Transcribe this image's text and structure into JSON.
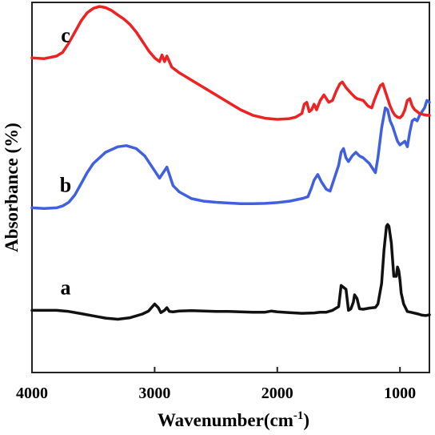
{
  "chart_data": {
    "type": "line",
    "title": "",
    "xlabel": "Wavenumber(cm",
    "xlabel_sup": "-1",
    "xlabel_close": ")",
    "ylabel": "Absorbance (%)",
    "xlim": [
      4000,
      760
    ],
    "ylim": [
      0,
      100
    ],
    "x_reversed": true,
    "x_ticks": [
      {
        "value": 4000,
        "label": "4000"
      },
      {
        "value": 3000,
        "label": "3000"
      },
      {
        "value": 2000,
        "label": "2000"
      },
      {
        "value": 1000,
        "label": "1000"
      }
    ],
    "y_ticks_shown": false,
    "grid": false,
    "legend": "none",
    "series": [
      {
        "name": "a",
        "color": "#111111",
        "points": [
          [
            4000,
            16.8
          ],
          [
            3800,
            16.8
          ],
          [
            3700,
            16.5
          ],
          [
            3600,
            15.9
          ],
          [
            3500,
            15.3
          ],
          [
            3400,
            14.7
          ],
          [
            3300,
            14.4
          ],
          [
            3200,
            14.8
          ],
          [
            3100,
            15.8
          ],
          [
            3050,
            16.6
          ],
          [
            3000,
            18.5
          ],
          [
            2970,
            17.5
          ],
          [
            2950,
            16.2
          ],
          [
            2920,
            16.8
          ],
          [
            2900,
            17.5
          ],
          [
            2880,
            16.5
          ],
          [
            2850,
            16.4
          ],
          [
            2800,
            16.6
          ],
          [
            2700,
            16.7
          ],
          [
            2600,
            16.6
          ],
          [
            2500,
            16.5
          ],
          [
            2400,
            16.5
          ],
          [
            2300,
            16.4
          ],
          [
            2200,
            16.3
          ],
          [
            2100,
            16.3
          ],
          [
            2050,
            16.6
          ],
          [
            2000,
            16.4
          ],
          [
            1900,
            16.2
          ],
          [
            1800,
            16.0
          ],
          [
            1700,
            16.1
          ],
          [
            1650,
            16.3
          ],
          [
            1600,
            16.3
          ],
          [
            1550,
            16.8
          ],
          [
            1500,
            17.8
          ],
          [
            1480,
            23.5
          ],
          [
            1460,
            23.0
          ],
          [
            1440,
            22.5
          ],
          [
            1420,
            16.8
          ],
          [
            1400,
            17.2
          ],
          [
            1380,
            19.0
          ],
          [
            1370,
            21.0
          ],
          [
            1350,
            20.0
          ],
          [
            1330,
            17.2
          ],
          [
            1300,
            17.1
          ],
          [
            1250,
            17.4
          ],
          [
            1200,
            17.6
          ],
          [
            1180,
            18.5
          ],
          [
            1150,
            24.0
          ],
          [
            1130,
            33.0
          ],
          [
            1110,
            39.5
          ],
          [
            1100,
            40.0
          ],
          [
            1090,
            39.5
          ],
          [
            1070,
            35.0
          ],
          [
            1050,
            26.0
          ],
          [
            1030,
            26.0
          ],
          [
            1020,
            28.5
          ],
          [
            1010,
            27.5
          ],
          [
            1000,
            25.0
          ],
          [
            990,
            21.5
          ],
          [
            970,
            18.5
          ],
          [
            940,
            16.5
          ],
          [
            900,
            16.2
          ],
          [
            850,
            15.8
          ],
          [
            820,
            15.5
          ],
          [
            790,
            15.4
          ],
          [
            760,
            15.6
          ]
        ]
      },
      {
        "name": "b",
        "color": "#4060e0",
        "points": [
          [
            4000,
            44.5
          ],
          [
            3900,
            44.3
          ],
          [
            3800,
            44.5
          ],
          [
            3750,
            45.0
          ],
          [
            3700,
            46.0
          ],
          [
            3650,
            48.0
          ],
          [
            3600,
            51.0
          ],
          [
            3550,
            54.0
          ],
          [
            3500,
            56.5
          ],
          [
            3400,
            59.5
          ],
          [
            3300,
            61.0
          ],
          [
            3230,
            61.3
          ],
          [
            3150,
            60.5
          ],
          [
            3080,
            58.5
          ],
          [
            3000,
            54.5
          ],
          [
            2960,
            52.5
          ],
          [
            2930,
            54.0
          ],
          [
            2900,
            55.5
          ],
          [
            2880,
            53.5
          ],
          [
            2850,
            50.5
          ],
          [
            2800,
            48.8
          ],
          [
            2700,
            47.0
          ],
          [
            2600,
            46.3
          ],
          [
            2500,
            46.0
          ],
          [
            2400,
            45.8
          ],
          [
            2300,
            45.6
          ],
          [
            2200,
            45.6
          ],
          [
            2100,
            45.7
          ],
          [
            2000,
            45.9
          ],
          [
            1900,
            46.3
          ],
          [
            1800,
            47.0
          ],
          [
            1750,
            47.5
          ],
          [
            1720,
            50.0
          ],
          [
            1700,
            52.0
          ],
          [
            1670,
            53.5
          ],
          [
            1640,
            51.5
          ],
          [
            1600,
            49.5
          ],
          [
            1570,
            49.0
          ],
          [
            1540,
            52.0
          ],
          [
            1500,
            56.0
          ],
          [
            1480,
            59.5
          ],
          [
            1460,
            60.5
          ],
          [
            1440,
            58.0
          ],
          [
            1420,
            57.0
          ],
          [
            1390,
            58.5
          ],
          [
            1360,
            59.5
          ],
          [
            1330,
            58.5
          ],
          [
            1300,
            58.0
          ],
          [
            1250,
            56.5
          ],
          [
            1200,
            54.0
          ],
          [
            1180,
            58.0
          ],
          [
            1150,
            66.0
          ],
          [
            1120,
            71.5
          ],
          [
            1100,
            71.0
          ],
          [
            1080,
            68.0
          ],
          [
            1060,
            66.5
          ],
          [
            1040,
            64.5
          ],
          [
            1020,
            62.5
          ],
          [
            1000,
            61.5
          ],
          [
            980,
            62.0
          ],
          [
            960,
            62.5
          ],
          [
            940,
            61.0
          ],
          [
            920,
            65.0
          ],
          [
            900,
            68.0
          ],
          [
            880,
            68.5
          ],
          [
            860,
            68.0
          ],
          [
            840,
            69.5
          ],
          [
            820,
            70.5
          ],
          [
            800,
            71.5
          ],
          [
            780,
            73.5
          ],
          [
            760,
            73.0
          ]
        ]
      },
      {
        "name": "c",
        "color": "#ee2222",
        "points": [
          [
            4000,
            85.0
          ],
          [
            3900,
            84.8
          ],
          [
            3800,
            85.5
          ],
          [
            3750,
            86.5
          ],
          [
            3700,
            89.0
          ],
          [
            3650,
            92.0
          ],
          [
            3600,
            95.0
          ],
          [
            3550,
            97.2
          ],
          [
            3500,
            98.4
          ],
          [
            3450,
            98.9
          ],
          [
            3400,
            98.6
          ],
          [
            3350,
            97.8
          ],
          [
            3300,
            96.6
          ],
          [
            3250,
            95.5
          ],
          [
            3200,
            94.0
          ],
          [
            3150,
            92.0
          ],
          [
            3100,
            89.5
          ],
          [
            3050,
            87.0
          ],
          [
            3000,
            85.0
          ],
          [
            2960,
            84.0
          ],
          [
            2940,
            85.8
          ],
          [
            2920,
            84.0
          ],
          [
            2900,
            85.5
          ],
          [
            2880,
            84.0
          ],
          [
            2860,
            82.5
          ],
          [
            2800,
            81.0
          ],
          [
            2700,
            79.0
          ],
          [
            2600,
            77.0
          ],
          [
            2500,
            75.0
          ],
          [
            2400,
            73.0
          ],
          [
            2300,
            71.0
          ],
          [
            2200,
            69.5
          ],
          [
            2100,
            68.7
          ],
          [
            2000,
            68.4
          ],
          [
            1900,
            68.6
          ],
          [
            1850,
            69.0
          ],
          [
            1800,
            70.0
          ],
          [
            1780,
            72.5
          ],
          [
            1760,
            73.0
          ],
          [
            1740,
            70.5
          ],
          [
            1720,
            71.0
          ],
          [
            1700,
            72.5
          ],
          [
            1680,
            71.0
          ],
          [
            1650,
            73.5
          ],
          [
            1620,
            75.0
          ],
          [
            1600,
            74.0
          ],
          [
            1580,
            73.0
          ],
          [
            1550,
            73.5
          ],
          [
            1520,
            76.0
          ],
          [
            1490,
            78.0
          ],
          [
            1470,
            78.5
          ],
          [
            1440,
            77.0
          ],
          [
            1400,
            75.5
          ],
          [
            1370,
            74.5
          ],
          [
            1350,
            74.0
          ],
          [
            1300,
            73.5
          ],
          [
            1260,
            72.0
          ],
          [
            1230,
            71.5
          ],
          [
            1210,
            73.5
          ],
          [
            1180,
            76.0
          ],
          [
            1160,
            77.5
          ],
          [
            1140,
            78.0
          ],
          [
            1120,
            76.0
          ],
          [
            1100,
            74.0
          ],
          [
            1080,
            72.0
          ],
          [
            1060,
            70.5
          ],
          [
            1040,
            69.5
          ],
          [
            1020,
            69.0
          ],
          [
            1000,
            68.8
          ],
          [
            980,
            69.5
          ],
          [
            960,
            71.0
          ],
          [
            940,
            73.5
          ],
          [
            920,
            74.0
          ],
          [
            900,
            72.0
          ],
          [
            880,
            71.0
          ],
          [
            860,
            70.5
          ],
          [
            840,
            70.0
          ],
          [
            820,
            69.8
          ],
          [
            800,
            69.6
          ],
          [
            780,
            69.5
          ],
          [
            760,
            69.5
          ]
        ]
      }
    ]
  }
}
